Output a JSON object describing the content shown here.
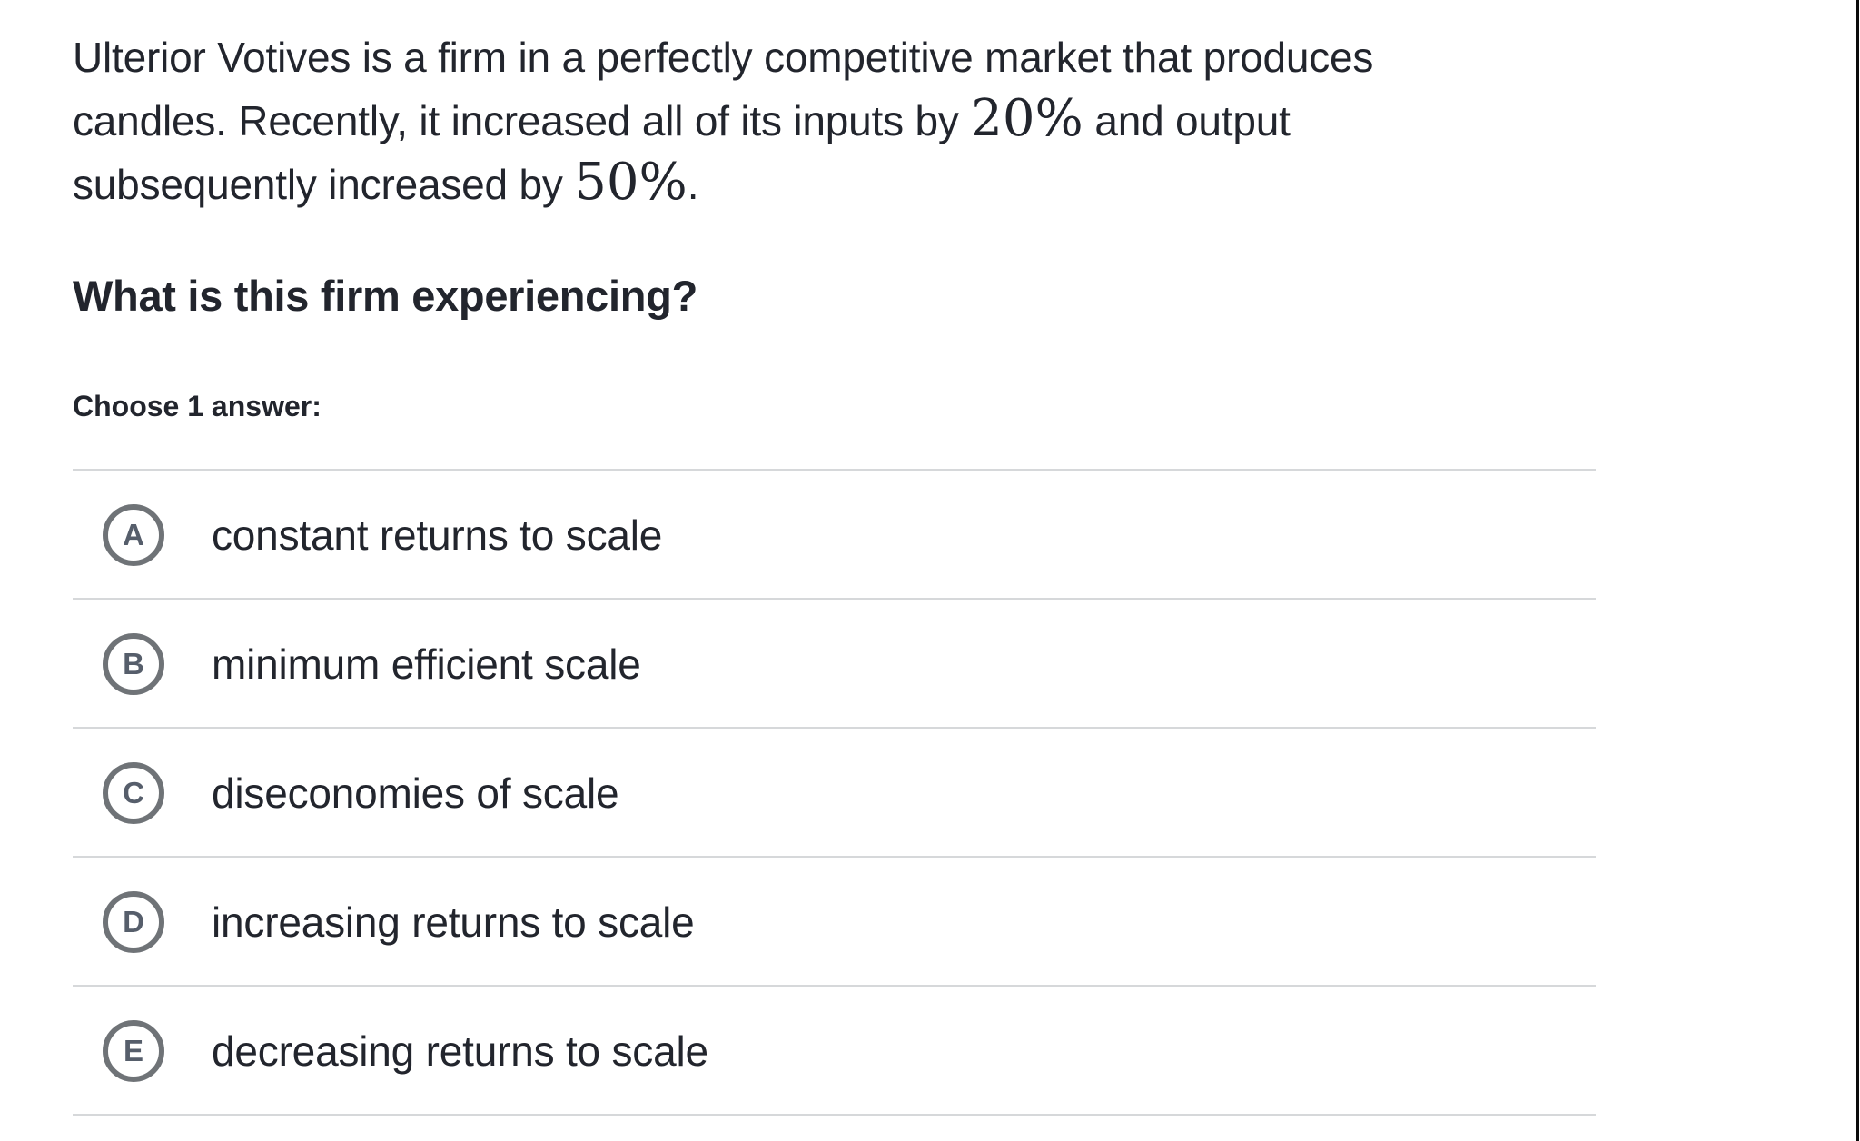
{
  "question": {
    "lines": [
      [
        {
          "type": "text",
          "value": "Ulterior Votives is a firm in a perfectly competitive market that produces"
        }
      ],
      [
        {
          "type": "text",
          "value": "candles. Recently, it increased all of its inputs by "
        },
        {
          "type": "math",
          "value": "20%"
        },
        {
          "type": "text",
          "value": " and output"
        }
      ],
      [
        {
          "type": "text",
          "value": "subsequently increased by "
        },
        {
          "type": "math",
          "value": "50%"
        },
        {
          "type": "text",
          "value": "."
        }
      ]
    ],
    "heading": "What is this firm experiencing?",
    "choose_label": "Choose 1 answer:"
  },
  "answers": [
    {
      "letter": "A",
      "label": "constant returns to scale"
    },
    {
      "letter": "B",
      "label": "minimum efficient scale"
    },
    {
      "letter": "C",
      "label": "diseconomies of scale"
    },
    {
      "letter": "D",
      "label": "increasing returns to scale"
    },
    {
      "letter": "E",
      "label": "decreasing returns to scale"
    }
  ],
  "colors": {
    "text": "#22252d",
    "divider": "#d6d8da",
    "circle_ring": "#6f7377",
    "circle_letter": "#565e6b",
    "edge_line": "#0a0a0a",
    "background": "#ffffff"
  }
}
